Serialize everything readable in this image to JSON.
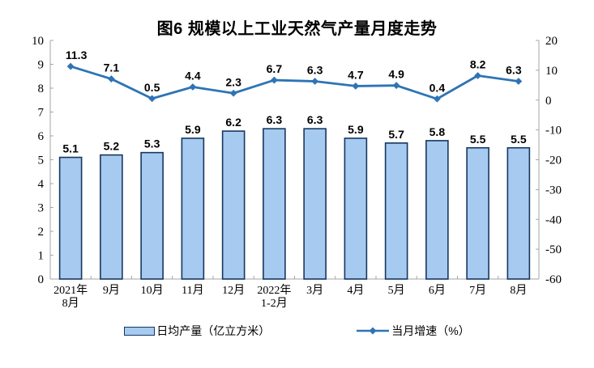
{
  "chart_data": {
    "type": "bar",
    "title": "图6 规模以上工业天然气产量月度走势",
    "categories": [
      "2021年\n8月",
      "9月",
      "10月",
      "11月",
      "12月",
      "2022年\n1-2月",
      "3月",
      "4月",
      "5月",
      "6月",
      "7月",
      "8月"
    ],
    "series": [
      {
        "name": "日均产量（亿立方米）",
        "type": "bar",
        "axis": "left",
        "values": [
          5.1,
          5.2,
          5.3,
          5.9,
          6.2,
          6.3,
          6.3,
          5.9,
          5.7,
          5.8,
          5.5,
          5.5
        ]
      },
      {
        "name": "当月增速（%）",
        "type": "line",
        "axis": "right",
        "values": [
          11.3,
          7.1,
          0.5,
          4.4,
          2.3,
          6.7,
          6.3,
          4.7,
          4.9,
          0.4,
          8.2,
          6.3
        ]
      }
    ],
    "axes": {
      "left": {
        "min": 0,
        "max": 10,
        "step": 1,
        "ticks": [
          0,
          1,
          2,
          3,
          4,
          5,
          6,
          7,
          8,
          9,
          10
        ]
      },
      "right": {
        "min": -60,
        "max": 20,
        "step": 10,
        "ticks": [
          20,
          10,
          0,
          -10,
          -20,
          -30,
          -40,
          -50,
          -60
        ]
      }
    },
    "grid": false,
    "legend_position": "bottom",
    "colors": {
      "bar_fill": "#A6CAF0",
      "bar_border": "#17375E",
      "line": "#2E74B5",
      "axis": "#A6A6A6",
      "label_text": "#000000"
    }
  }
}
